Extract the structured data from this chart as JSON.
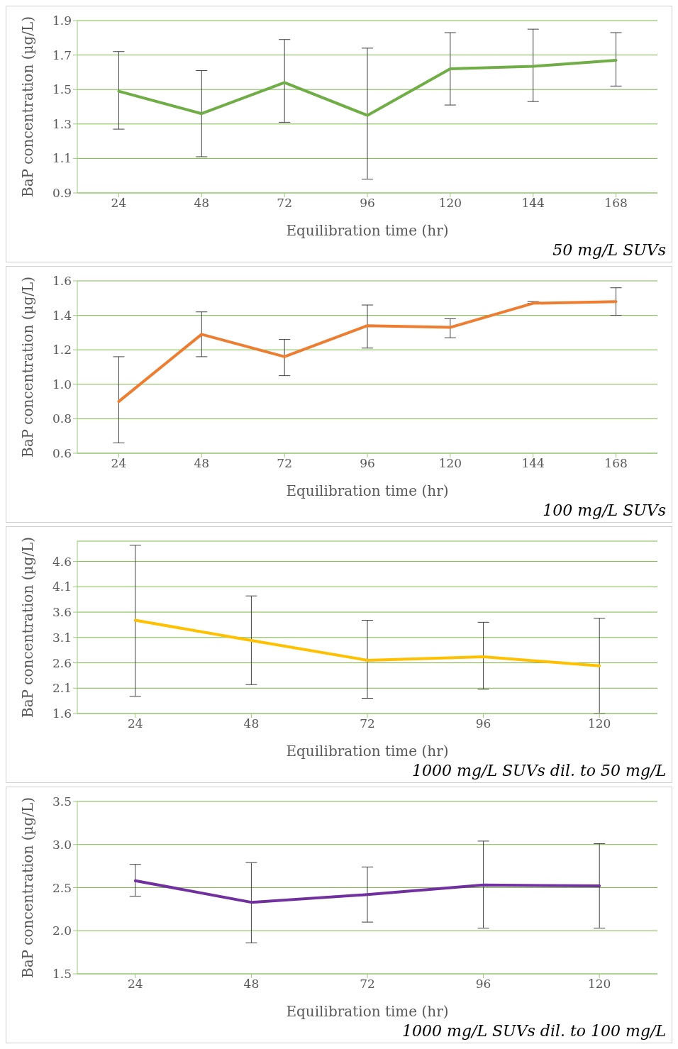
{
  "chart_data": [
    {
      "type": "line",
      "xlabel": "Equilibration time (hr)",
      "ylabel": "BaP concentration (µg/L)",
      "categories": [
        "24",
        "48",
        "72",
        "96",
        "120",
        "144",
        "168"
      ],
      "series": [
        {
          "color": "#70ad47",
          "values": [
            1.49,
            1.36,
            1.54,
            1.35,
            1.62,
            1.635,
            1.67
          ],
          "errors": [
            [
              1.27,
              1.72
            ],
            [
              1.11,
              1.61
            ],
            [
              1.31,
              1.79
            ],
            [
              0.98,
              1.74
            ],
            [
              1.41,
              1.83
            ],
            [
              1.43,
              1.85
            ],
            [
              1.52,
              1.83
            ]
          ]
        }
      ],
      "ylim": [
        0.9,
        1.9
      ],
      "yticks": [
        0.9,
        1.1,
        1.3,
        1.5,
        1.7,
        1.9
      ],
      "grid": "y",
      "marker": "none",
      "line_style": "solid",
      "annotations": [
        "50 mg/L SUVs"
      ]
    },
    {
      "type": "line",
      "xlabel": "Equilibration time (hr)",
      "ylabel": "BaP concentration (µg/L)",
      "categories": [
        "24",
        "48",
        "72",
        "96",
        "120",
        "144",
        "168"
      ],
      "series": [
        {
          "color": "#ed7d31",
          "values": [
            0.9,
            1.29,
            1.16,
            1.34,
            1.33,
            1.47,
            1.48
          ],
          "errors": [
            [
              0.66,
              1.16
            ],
            [
              1.16,
              1.42
            ],
            [
              1.05,
              1.26
            ],
            [
              1.21,
              1.46
            ],
            [
              1.27,
              1.38
            ],
            [
              1.47,
              1.48
            ],
            [
              1.4,
              1.56
            ]
          ]
        }
      ],
      "ylim": [
        0.6,
        1.6
      ],
      "yticks": [
        0.6,
        0.8,
        {
          "value": 1,
          "label": "1.0"
        },
        1.2,
        1.4,
        1.6
      ],
      "grid": "y",
      "marker": "none",
      "line_style": "solid",
      "annotations": [
        "100 mg/L SUVs"
      ]
    },
    {
      "type": "line",
      "xlabel": "Equilibration time (hr)",
      "ylabel": "BaP concentration (µg/L)",
      "categories": [
        "24",
        "48",
        "72",
        "96",
        "120"
      ],
      "series": [
        {
          "color": "#ffc000",
          "values": [
            3.44,
            3.04,
            2.65,
            2.72,
            2.54
          ],
          "errors": [
            [
              1.94,
              4.92
            ],
            [
              2.17,
              3.92
            ],
            [
              1.9,
              3.44
            ],
            [
              2.08,
              3.4
            ],
            [
              1.6,
              3.48
            ]
          ]
        }
      ],
      "ylim": [
        1.6,
        5.0
      ],
      "yticks": [
        1.6,
        2.1,
        2.6,
        3.1,
        3.6,
        4.1,
        4.6
      ],
      "grid": "y",
      "marker": "none",
      "line_style": "solid",
      "annotations": [
        "1000 mg/L SUVs dil. to 50 mg/L"
      ]
    },
    {
      "type": "line",
      "xlabel": "Equilibration time (hr)",
      "ylabel": "BaP concentration (µg/L)",
      "categories": [
        "24",
        "48",
        "72",
        "96",
        "120"
      ],
      "series": [
        {
          "color": "#7030a0",
          "values": [
            2.58,
            2.33,
            2.42,
            2.53,
            2.52
          ],
          "errors": [
            [
              2.4,
              2.77
            ],
            [
              1.86,
              2.79
            ],
            [
              2.1,
              2.74
            ],
            [
              2.03,
              3.04
            ],
            [
              2.03,
              3.01
            ]
          ]
        }
      ],
      "ylim": [
        1.5,
        3.5
      ],
      "yticks": [
        1.5,
        {
          "value": 2,
          "label": "2.0"
        },
        2.5,
        {
          "value": 3,
          "label": "3.0"
        },
        3.5
      ],
      "grid": "y",
      "marker": "none",
      "line_style": "solid",
      "annotations": [
        "1000 mg/L SUVs dil. to 100 mg/L"
      ]
    }
  ]
}
